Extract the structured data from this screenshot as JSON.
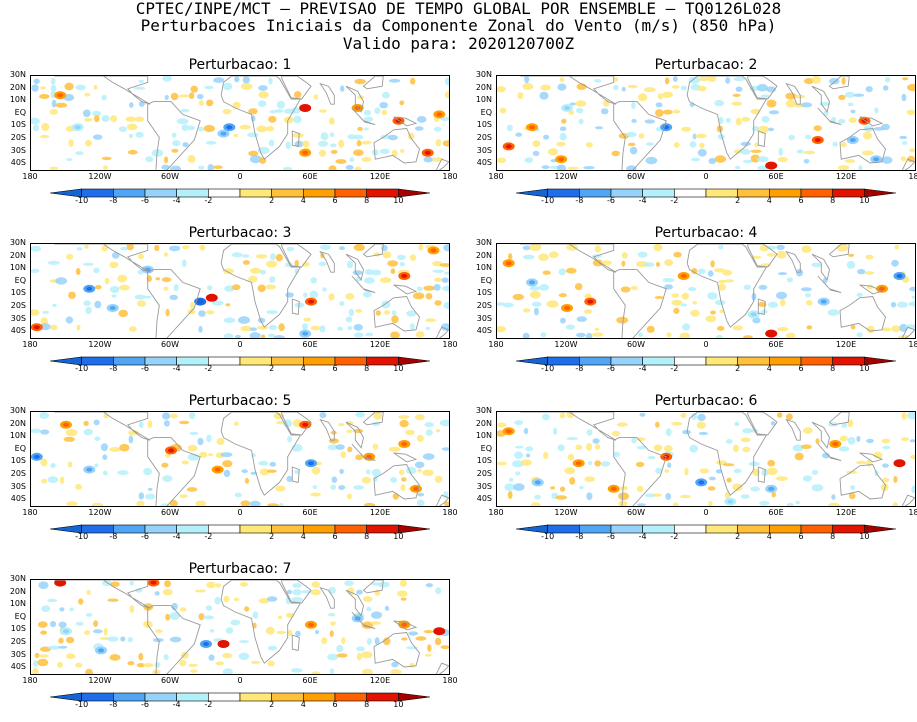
{
  "header": {
    "line1": "CPTEC/INPE/MCT – PREVISAO DE TEMPO GLOBAL POR ENSEMBLE – TQ0126L028",
    "line2": "Perturbacoes Iniciais da Componente Zonal do Vento (m/s) (850 hPa)",
    "line3": "Valido para: 2020120700Z"
  },
  "y_ticks": [
    "30N",
    "20N",
    "10N",
    "EQ",
    "10S",
    "20S",
    "30S",
    "40S"
  ],
  "x_ticks": [
    "180",
    "120W",
    "60W",
    "0",
    "60E",
    "120E",
    "180"
  ],
  "colorbar": {
    "labels": [
      "-10",
      "-8",
      "-6",
      "-4",
      "-2",
      "2",
      "4",
      "6",
      "8",
      "10"
    ],
    "colors": [
      "#1464d2",
      "#1e6eeb",
      "#50a5f5",
      "#96d2fa",
      "#b4f0fa",
      "#ffffff",
      "#ffe878",
      "#ffc03c",
      "#ffa000",
      "#ff6000",
      "#e11400",
      "#a50000"
    ]
  },
  "chart_data": [
    {
      "type": "heatmap",
      "title": "Perturbacao: 1",
      "variable": "Componente Zonal do Vento (m/s) 850 hPa",
      "x_range": [
        -180,
        180
      ],
      "y_range": [
        -45,
        30
      ],
      "levels": [
        -10,
        -8,
        -6,
        -4,
        -2,
        2,
        4,
        6,
        8,
        10
      ],
      "features": [
        {
          "lon": 55,
          "lat": 5,
          "u": 10
        },
        {
          "lon": -10,
          "lat": -10,
          "u": -8
        },
        {
          "lon": -15,
          "lat": -15,
          "u": -6
        },
        {
          "lon": 135,
          "lat": -5,
          "u": 8
        },
        {
          "lon": 160,
          "lat": -30,
          "u": 8
        },
        {
          "lon": -155,
          "lat": 15,
          "u": 6
        },
        {
          "lon": 100,
          "lat": 5,
          "u": 6
        },
        {
          "lon": 55,
          "lat": -30,
          "u": 6
        },
        {
          "lon": -140,
          "lat": -10,
          "u": -4
        },
        {
          "lon": 170,
          "lat": 0,
          "u": 6
        }
      ]
    },
    {
      "type": "heatmap",
      "title": "Perturbacao: 2",
      "variable": "Componente Zonal do Vento (m/s) 850 hPa",
      "x_range": [
        -180,
        180
      ],
      "y_range": [
        -45,
        30
      ],
      "levels": [
        -10,
        -8,
        -6,
        -4,
        -2,
        2,
        4,
        6,
        8,
        10
      ],
      "features": [
        {
          "lon": 55,
          "lat": -40,
          "u": 10
        },
        {
          "lon": 95,
          "lat": -20,
          "u": 8
        },
        {
          "lon": -170,
          "lat": -25,
          "u": 8
        },
        {
          "lon": -125,
          "lat": -35,
          "u": 6
        },
        {
          "lon": -35,
          "lat": -10,
          "u": -8
        },
        {
          "lon": 125,
          "lat": -20,
          "u": -6
        },
        {
          "lon": 135,
          "lat": -5,
          "u": 8
        },
        {
          "lon": 145,
          "lat": -35,
          "u": -6
        },
        {
          "lon": -120,
          "lat": 5,
          "u": -4
        },
        {
          "lon": -150,
          "lat": -10,
          "u": 6
        }
      ]
    },
    {
      "type": "heatmap",
      "title": "Perturbacao: 3",
      "variable": "Componente Zonal do Vento (m/s) 850 hPa",
      "x_range": [
        -180,
        180
      ],
      "y_range": [
        -45,
        30
      ],
      "levels": [
        -10,
        -8,
        -6,
        -4,
        -2,
        2,
        4,
        6,
        8,
        10
      ],
      "features": [
        {
          "lon": -35,
          "lat": -15,
          "u": -10
        },
        {
          "lon": -25,
          "lat": -12,
          "u": 10
        },
        {
          "lon": 55,
          "lat": -40,
          "u": -6
        },
        {
          "lon": -175,
          "lat": -35,
          "u": 8
        },
        {
          "lon": -130,
          "lat": -5,
          "u": -8
        },
        {
          "lon": 60,
          "lat": -15,
          "u": 8
        },
        {
          "lon": 140,
          "lat": 5,
          "u": 8
        },
        {
          "lon": -80,
          "lat": 10,
          "u": -6
        },
        {
          "lon": -110,
          "lat": -20,
          "u": -6
        },
        {
          "lon": 165,
          "lat": 25,
          "u": 6
        }
      ]
    },
    {
      "type": "heatmap",
      "title": "Perturbacao: 4",
      "variable": "Componente Zonal do Vento (m/s) 850 hPa",
      "x_range": [
        -180,
        180
      ],
      "y_range": [
        -45,
        30
      ],
      "levels": [
        -10,
        -8,
        -6,
        -4,
        -2,
        2,
        4,
        6,
        8,
        10
      ],
      "features": [
        {
          "lon": -100,
          "lat": -15,
          "u": 8
        },
        {
          "lon": -120,
          "lat": -20,
          "u": 6
        },
        {
          "lon": 55,
          "lat": -40,
          "u": 10
        },
        {
          "lon": 165,
          "lat": 5,
          "u": -8
        },
        {
          "lon": 150,
          "lat": -5,
          "u": 6
        },
        {
          "lon": -20,
          "lat": 5,
          "u": 6
        },
        {
          "lon": -150,
          "lat": 0,
          "u": -6
        },
        {
          "lon": 100,
          "lat": -15,
          "u": -6
        },
        {
          "lon": -170,
          "lat": 15,
          "u": 6
        },
        {
          "lon": 40,
          "lat": -25,
          "u": -4
        }
      ]
    },
    {
      "type": "heatmap",
      "title": "Perturbacao: 5",
      "variable": "Componente Zonal do Vento (m/s) 850 hPa",
      "x_range": [
        -180,
        180
      ],
      "y_range": [
        -45,
        30
      ],
      "levels": [
        -10,
        -8,
        -6,
        -4,
        -2,
        2,
        4,
        6,
        8,
        10
      ],
      "features": [
        {
          "lon": -175,
          "lat": -5,
          "u": -8
        },
        {
          "lon": -130,
          "lat": -15,
          "u": -6
        },
        {
          "lon": -60,
          "lat": 0,
          "u": 8
        },
        {
          "lon": -20,
          "lat": -15,
          "u": 6
        },
        {
          "lon": 55,
          "lat": 20,
          "u": 8
        },
        {
          "lon": 60,
          "lat": -10,
          "u": -8
        },
        {
          "lon": 110,
          "lat": -5,
          "u": 6
        },
        {
          "lon": 140,
          "lat": 5,
          "u": 6
        },
        {
          "lon": -150,
          "lat": 20,
          "u": 6
        },
        {
          "lon": 150,
          "lat": -30,
          "u": 6
        }
      ]
    },
    {
      "type": "heatmap",
      "title": "Perturbacao: 6",
      "variable": "Componente Zonal do Vento (m/s) 850 hPa",
      "x_range": [
        -180,
        180
      ],
      "y_range": [
        -45,
        30
      ],
      "levels": [
        -10,
        -8,
        -6,
        -4,
        -2,
        2,
        4,
        6,
        8,
        10
      ],
      "features": [
        {
          "lon": -35,
          "lat": -5,
          "u": 8
        },
        {
          "lon": -5,
          "lat": -25,
          "u": -8
        },
        {
          "lon": 165,
          "lat": -10,
          "u": 10
        },
        {
          "lon": -170,
          "lat": 15,
          "u": 6
        },
        {
          "lon": -110,
          "lat": -10,
          "u": 6
        },
        {
          "lon": -145,
          "lat": -25,
          "u": -6
        },
        {
          "lon": 55,
          "lat": -30,
          "u": -6
        },
        {
          "lon": 110,
          "lat": 5,
          "u": 6
        },
        {
          "lon": -80,
          "lat": -30,
          "u": 6
        },
        {
          "lon": 20,
          "lat": -40,
          "u": -4
        }
      ]
    },
    {
      "type": "heatmap",
      "title": "Perturbacao: 7",
      "variable": "Componente Zonal do Vento (m/s) 850 hPa",
      "x_range": [
        -180,
        180
      ],
      "y_range": [
        -45,
        30
      ],
      "levels": [
        -10,
        -8,
        -6,
        -4,
        -2,
        2,
        4,
        6,
        8,
        10
      ],
      "features": [
        {
          "lon": -155,
          "lat": 28,
          "u": 10
        },
        {
          "lon": -75,
          "lat": 28,
          "u": 8
        },
        {
          "lon": -15,
          "lat": -20,
          "u": 10
        },
        {
          "lon": -30,
          "lat": -20,
          "u": -8
        },
        {
          "lon": 170,
          "lat": -10,
          "u": 10
        },
        {
          "lon": 140,
          "lat": -5,
          "u": 6
        },
        {
          "lon": 100,
          "lat": 0,
          "u": -6
        },
        {
          "lon": -120,
          "lat": -25,
          "u": -6
        },
        {
          "lon": -150,
          "lat": -10,
          "u": -4
        },
        {
          "lon": 60,
          "lat": -5,
          "u": 6
        }
      ]
    }
  ]
}
